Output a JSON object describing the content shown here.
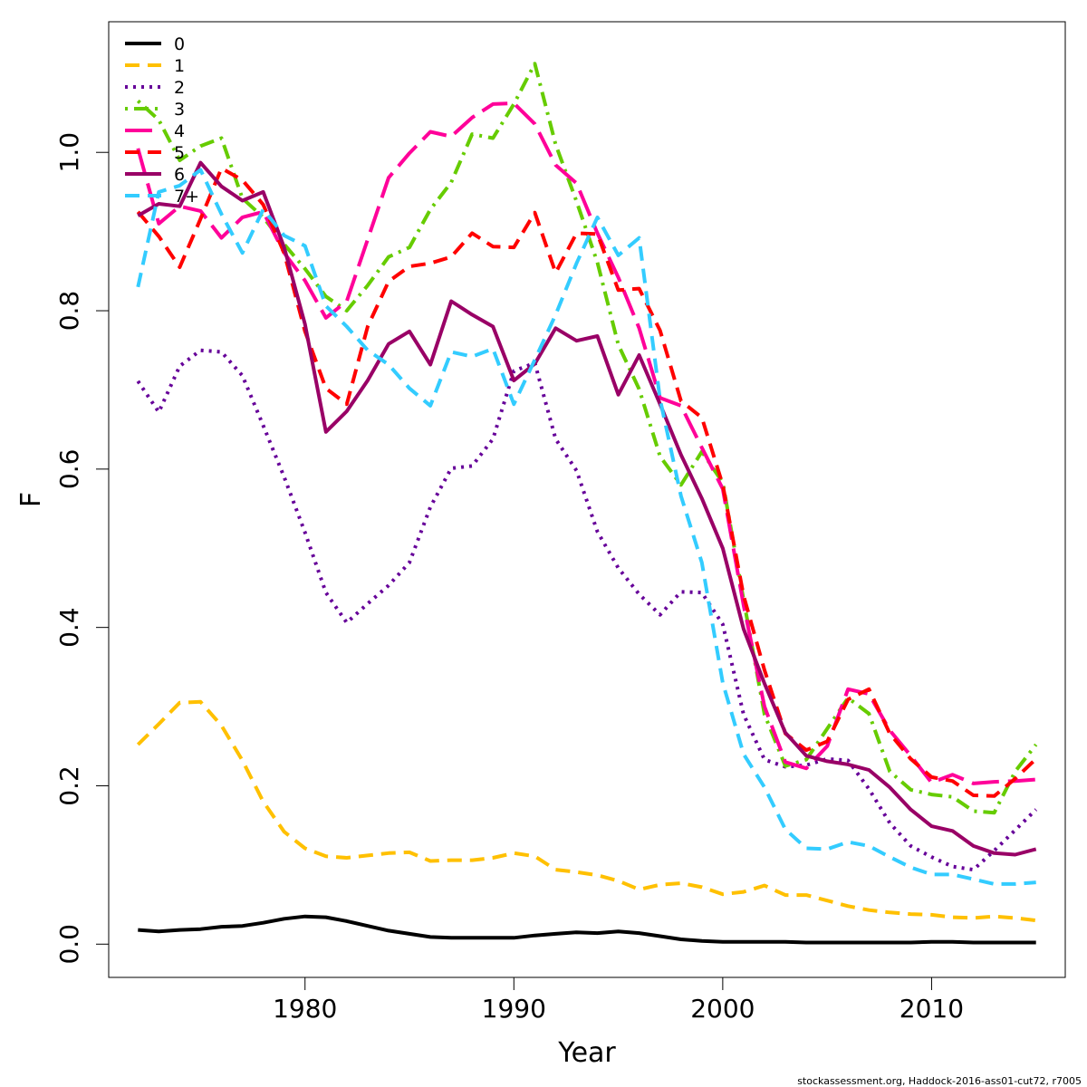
{
  "chart_data": {
    "type": "line",
    "title": "",
    "xlabel": "Year",
    "ylabel": "F",
    "xlim": [
      1970.6,
      2016.4
    ],
    "ylim": [
      -0.042,
      1.165
    ],
    "x_ticks": [
      1980,
      1990,
      2000,
      2010
    ],
    "x_tick_labels": [
      "1980",
      "1990",
      "2000",
      "2010"
    ],
    "y_ticks": [
      0.0,
      0.2,
      0.4,
      0.6,
      0.8,
      1.0
    ],
    "y_tick_labels": [
      "0.0",
      "0.2",
      "0.4",
      "0.6",
      "0.8",
      "1.0"
    ],
    "grid": false,
    "legend_position": "top-left",
    "x": [
      1972,
      1973,
      1974,
      1975,
      1976,
      1977,
      1978,
      1979,
      1980,
      1981,
      1982,
      1983,
      1984,
      1985,
      1986,
      1987,
      1988,
      1989,
      1990,
      1991,
      1992,
      1993,
      1994,
      1995,
      1996,
      1997,
      1998,
      1999,
      2000,
      2001,
      2002,
      2003,
      2004,
      2005,
      2006,
      2007,
      2008,
      2009,
      2010,
      2011,
      2012,
      2013,
      2014,
      2015
    ],
    "series": [
      {
        "name": "0",
        "color": "#000000",
        "dash": "solid",
        "values": [
          0.018,
          0.016,
          0.018,
          0.019,
          0.022,
          0.023,
          0.027,
          0.032,
          0.035,
          0.034,
          0.029,
          0.023,
          0.017,
          0.013,
          0.009,
          0.008,
          0.008,
          0.008,
          0.008,
          0.011,
          0.013,
          0.015,
          0.014,
          0.016,
          0.014,
          0.01,
          0.006,
          0.004,
          0.003,
          0.003,
          0.003,
          0.003,
          0.002,
          0.002,
          0.002,
          0.002,
          0.002,
          0.002,
          0.003,
          0.003,
          0.002,
          0.002,
          0.002,
          0.002
        ]
      },
      {
        "name": "1",
        "color": "#FFC000",
        "dash": "dashed",
        "values": [
          0.252,
          0.278,
          0.305,
          0.306,
          0.276,
          0.232,
          0.18,
          0.142,
          0.121,
          0.111,
          0.109,
          0.112,
          0.115,
          0.116,
          0.105,
          0.106,
          0.106,
          0.109,
          0.115,
          0.111,
          0.094,
          0.091,
          0.087,
          0.08,
          0.069,
          0.075,
          0.077,
          0.072,
          0.063,
          0.066,
          0.074,
          0.062,
          0.062,
          0.055,
          0.048,
          0.043,
          0.04,
          0.038,
          0.037,
          0.034,
          0.033,
          0.035,
          0.033,
          0.03
        ]
      },
      {
        "name": "2",
        "color": "#660099",
        "dash": "dotted",
        "values": [
          0.711,
          0.672,
          0.73,
          0.75,
          0.748,
          0.718,
          0.655,
          0.59,
          0.52,
          0.444,
          0.406,
          0.43,
          0.453,
          0.482,
          0.552,
          0.601,
          0.604,
          0.638,
          0.724,
          0.734,
          0.638,
          0.598,
          0.521,
          0.475,
          0.442,
          0.416,
          0.445,
          0.444,
          0.404,
          0.29,
          0.233,
          0.224,
          0.226,
          0.234,
          0.232,
          0.196,
          0.153,
          0.124,
          0.11,
          0.098,
          0.094,
          0.118,
          0.144,
          0.17
        ]
      },
      {
        "name": "3",
        "color": "#66CC00",
        "dash": "dotdash",
        "values": [
          1.065,
          1.041,
          0.99,
          1.008,
          1.018,
          0.942,
          0.918,
          0.884,
          0.853,
          0.818,
          0.8,
          0.832,
          0.868,
          0.88,
          0.928,
          0.962,
          1.023,
          1.018,
          1.061,
          1.112,
          1.01,
          0.938,
          0.861,
          0.757,
          0.701,
          0.616,
          0.58,
          0.622,
          0.583,
          0.435,
          0.29,
          0.225,
          0.233,
          0.272,
          0.311,
          0.291,
          0.218,
          0.195,
          0.189,
          0.186,
          0.168,
          0.166,
          0.218,
          0.252
        ]
      },
      {
        "name": "4",
        "color": "#FF0099",
        "dash": "longdash",
        "values": [
          1.005,
          0.91,
          0.932,
          0.926,
          0.892,
          0.918,
          0.925,
          0.873,
          0.838,
          0.791,
          0.812,
          0.89,
          0.968,
          0.999,
          1.026,
          1.02,
          1.044,
          1.061,
          1.062,
          1.036,
          0.984,
          0.961,
          0.898,
          0.842,
          0.778,
          0.69,
          0.68,
          0.627,
          0.575,
          0.428,
          0.3,
          0.23,
          0.222,
          0.25,
          0.322,
          0.316,
          0.27,
          0.238,
          0.204,
          0.214,
          0.203,
          0.205,
          0.206,
          0.208
        ]
      },
      {
        "name": "5",
        "color": "#FF0000",
        "dash": "dashed",
        "values": [
          0.925,
          0.894,
          0.855,
          0.916,
          0.98,
          0.965,
          0.934,
          0.873,
          0.774,
          0.702,
          0.682,
          0.78,
          0.837,
          0.856,
          0.86,
          0.868,
          0.898,
          0.881,
          0.88,
          0.924,
          0.848,
          0.898,
          0.897,
          0.826,
          0.828,
          0.775,
          0.686,
          0.665,
          0.58,
          0.44,
          0.346,
          0.266,
          0.245,
          0.256,
          0.309,
          0.322,
          0.266,
          0.234,
          0.211,
          0.206,
          0.188,
          0.187,
          0.209,
          0.234
        ]
      },
      {
        "name": "6",
        "color": "#990066",
        "dash": "solid",
        "values": [
          0.92,
          0.935,
          0.932,
          0.987,
          0.957,
          0.939,
          0.95,
          0.88,
          0.783,
          0.647,
          0.673,
          0.712,
          0.758,
          0.774,
          0.732,
          0.812,
          0.795,
          0.78,
          0.712,
          0.733,
          0.778,
          0.762,
          0.768,
          0.694,
          0.744,
          0.682,
          0.618,
          0.563,
          0.5,
          0.398,
          0.329,
          0.267,
          0.238,
          0.231,
          0.227,
          0.22,
          0.198,
          0.17,
          0.149,
          0.143,
          0.124,
          0.115,
          0.113,
          0.12
        ]
      },
      {
        "name": "7+",
        "color": "#33CCFF",
        "dash": "dashed",
        "values": [
          0.83,
          0.95,
          0.958,
          0.978,
          0.922,
          0.873,
          0.928,
          0.895,
          0.882,
          0.806,
          0.78,
          0.75,
          0.732,
          0.702,
          0.68,
          0.748,
          0.742,
          0.752,
          0.682,
          0.738,
          0.795,
          0.86,
          0.918,
          0.87,
          0.892,
          0.688,
          0.566,
          0.482,
          0.33,
          0.24,
          0.198,
          0.145,
          0.121,
          0.12,
          0.129,
          0.124,
          0.11,
          0.097,
          0.088,
          0.088,
          0.082,
          0.076,
          0.076,
          0.078
        ]
      }
    ]
  },
  "footer": "stockassessment.org, Haddock-2016-ass01-cut72, r7005"
}
